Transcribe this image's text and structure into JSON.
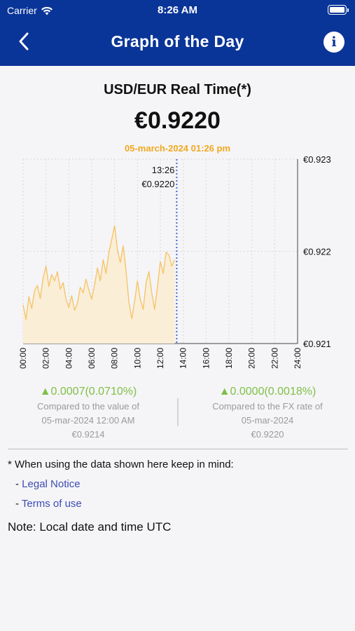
{
  "status_bar": {
    "carrier": "Carrier",
    "time": "8:26 AM"
  },
  "nav": {
    "title": "Graph of the Day",
    "back_icon": "chevron-left-icon",
    "info_icon": "info-icon"
  },
  "quote": {
    "pair": "USD/EUR Real Time(*)",
    "price": "€0.9220",
    "datetime": "05-march-2024 01:26 pm"
  },
  "chart_data": {
    "type": "area",
    "x_tick_labels": [
      "00:00",
      "02:00",
      "04:00",
      "06:00",
      "08:00",
      "10:00",
      "12:00",
      "14:00",
      "16:00",
      "18:00",
      "20:00",
      "22:00",
      "24:00"
    ],
    "y_tick_labels": [
      "€0.923",
      "€0.922",
      "€0.921"
    ],
    "ylim": [
      0.921,
      0.923
    ],
    "xlim": [
      0,
      24
    ],
    "grid": true,
    "cursor": {
      "time_label": "13:26",
      "value_label": "€0.9220",
      "x": 13.43
    },
    "series": [
      {
        "color": "#f5c56a",
        "fill": "#fbeed7",
        "x": [
          0,
          0.25,
          0.5,
          0.75,
          1,
          1.25,
          1.5,
          1.75,
          2,
          2.25,
          2.5,
          2.75,
          3,
          3.25,
          3.5,
          3.75,
          4,
          4.25,
          4.5,
          4.75,
          5,
          5.25,
          5.5,
          5.75,
          6,
          6.25,
          6.5,
          6.75,
          7,
          7.25,
          7.5,
          7.75,
          8,
          8.25,
          8.5,
          8.75,
          9,
          9.25,
          9.5,
          9.75,
          10,
          10.25,
          10.5,
          10.75,
          11,
          11.25,
          11.5,
          11.75,
          12,
          12.25,
          12.5,
          12.75,
          13,
          13.25
        ],
        "y": [
          0.92142,
          0.92126,
          0.92151,
          0.92138,
          0.92157,
          0.92163,
          0.92149,
          0.92171,
          0.92184,
          0.92162,
          0.92175,
          0.92168,
          0.92178,
          0.92159,
          0.92166,
          0.92148,
          0.92139,
          0.92152,
          0.92136,
          0.92144,
          0.92161,
          0.92155,
          0.9217,
          0.92158,
          0.92148,
          0.92164,
          0.92182,
          0.92168,
          0.92191,
          0.92176,
          0.92199,
          0.92213,
          0.92228,
          0.92201,
          0.92188,
          0.92206,
          0.92179,
          0.92145,
          0.92127,
          0.92146,
          0.92168,
          0.92148,
          0.92137,
          0.92166,
          0.92178,
          0.92155,
          0.92137,
          0.92162,
          0.92189,
          0.92176,
          0.92199,
          0.92196,
          0.92184,
          0.92191
        ]
      }
    ]
  },
  "comparisons": [
    {
      "delta": "▲0.0007(0.0710%)",
      "line1": "Compared to the value of",
      "line2": "05-mar-2024 12:00 AM",
      "line3": "€0.9214"
    },
    {
      "delta": "▲0.0000(0.0018%)",
      "line1": "Compared to the FX rate of",
      "line2": "05-mar-2024",
      "line3": "€0.9220"
    }
  ],
  "footer": {
    "notice": "* When using the data shown here keep in mind:",
    "link_prefix": "- ",
    "legal_notice": "Legal Notice",
    "terms_of_use": "Terms of use",
    "note": "Note: Local date and time UTC"
  }
}
